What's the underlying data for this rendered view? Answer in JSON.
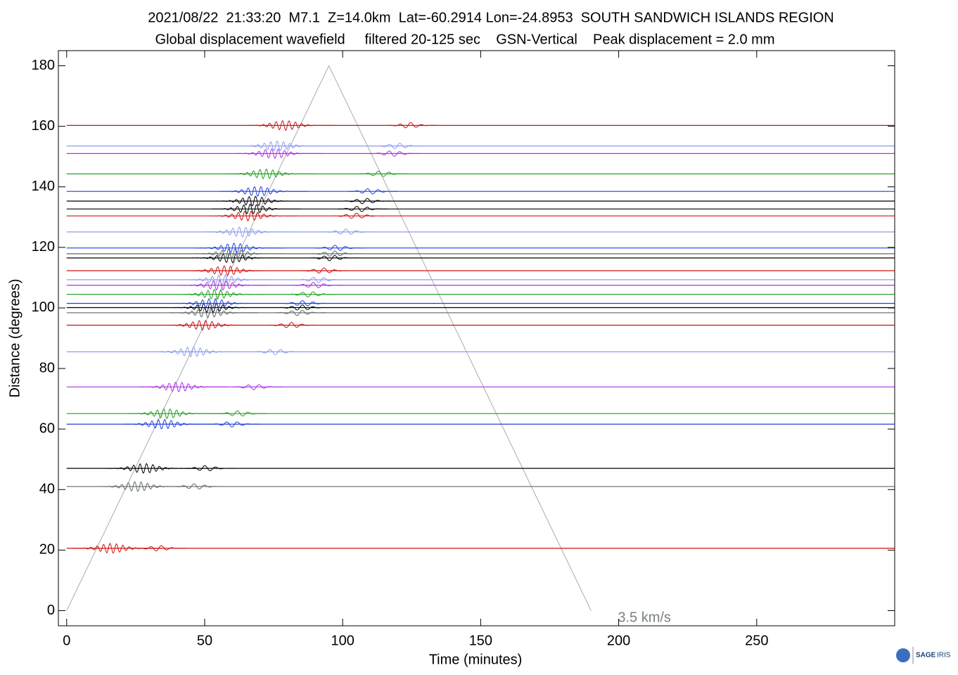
{
  "chart_data": {
    "type": "record-section",
    "title": "2021/08/22  21:33:20  M7.1  Z=14.0km  Lat=-60.2914 Lon=-24.8953  SOUTH SANDWICH ISLANDS REGION",
    "subtitle": "Global displacement wavefield     filtered 20-125 sec    GSN-Vertical    Peak displacement = 2.0 mm",
    "x_label": "Time (minutes)",
    "y_label": "Distance (degrees)",
    "xlim": [
      -3,
      300
    ],
    "ylim": [
      -5,
      185
    ],
    "xticks": [
      0,
      50,
      100,
      150,
      200,
      250
    ],
    "yticks": [
      0,
      20,
      40,
      60,
      80,
      100,
      120,
      140,
      160,
      180
    ],
    "traces": [
      {
        "distance": 20.6,
        "color": "#d01010"
      },
      {
        "distance": 41,
        "color": "#606868"
      },
      {
        "distance": 47,
        "color": "#000000"
      },
      {
        "distance": 61.6,
        "color": "#2040e0"
      },
      {
        "distance": 65.1,
        "color": "#20a020"
      },
      {
        "distance": 73.9,
        "color": "#b030e0"
      },
      {
        "distance": 85.5,
        "color": "#8c9cf0"
      },
      {
        "distance": 94.3,
        "color": "#d01010"
      },
      {
        "distance": 98.4,
        "color": "#606868"
      },
      {
        "distance": 100.1,
        "color": "#000000"
      },
      {
        "distance": 101.5,
        "color": "#2040e0"
      },
      {
        "distance": 104.5,
        "color": "#20a020"
      },
      {
        "distance": 107.5,
        "color": "#b030e0"
      },
      {
        "distance": 109.3,
        "color": "#8c9cf0"
      },
      {
        "distance": 112.3,
        "color": "#d01010"
      },
      {
        "distance": 116.5,
        "color": "#000000"
      },
      {
        "distance": 117.9,
        "color": "#606868"
      },
      {
        "distance": 119.8,
        "color": "#2040e0"
      },
      {
        "distance": 125.1,
        "color": "#8c9cf0"
      },
      {
        "distance": 130.4,
        "color": "#d01010"
      },
      {
        "distance": 132.7,
        "color": "#000000"
      },
      {
        "distance": 135.3,
        "color": "#000000"
      },
      {
        "distance": 138.5,
        "color": "#2040e0"
      },
      {
        "distance": 144.3,
        "color": "#20a020"
      },
      {
        "distance": 151,
        "color": "#b030e0"
      },
      {
        "distance": 153.5,
        "color": "#8c9cf0"
      },
      {
        "distance": 160.3,
        "color": "#d01010"
      }
    ],
    "velocity_line": {
      "label": "3.5 km/s",
      "color": "#b8b8b8",
      "x": [
        0,
        95,
        190
      ],
      "y": [
        0,
        180,
        0
      ]
    },
    "logo_text": [
      "SAGE",
      "IRIS"
    ]
  }
}
